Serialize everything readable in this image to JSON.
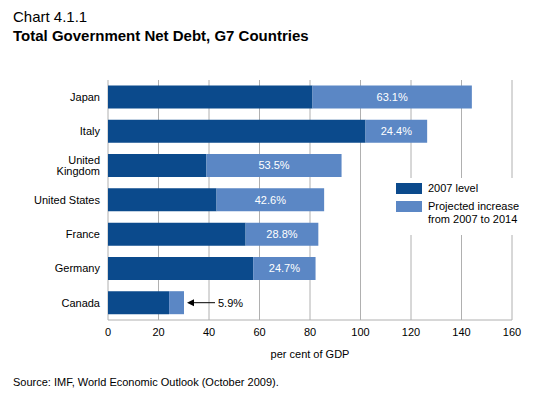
{
  "chart_data": {
    "type": "bar",
    "orientation": "horizontal",
    "stacked": true,
    "title": "Chart 4.1.1",
    "subtitle": "Total Government Net Debt, G7 Countries",
    "xlabel": "per cent of GDP",
    "source": "Source: IMF, World Economic Outlook (October 2009).",
    "categories": [
      "Japan",
      "Italy",
      "United Kingdom",
      "United States",
      "France",
      "Germany",
      "Canada"
    ],
    "series": [
      {
        "name": "2007 level",
        "color": "#0b4a8c",
        "values": [
          81,
          102,
          39,
          43,
          54.5,
          57.5,
          24.2
        ]
      },
      {
        "name": "Projected increase from 2007 to 2014",
        "color": "#5b87c5",
        "values": [
          63.1,
          24.4,
          53.5,
          42.6,
          28.8,
          24.7,
          5.9
        ],
        "data_labels": true,
        "value_labels": [
          "63.1%",
          "24.4%",
          "53.5%",
          "42.6%",
          "28.8%",
          "24.7%",
          "5.9%"
        ]
      }
    ],
    "xlim": [
      0,
      160
    ],
    "xticks": [
      0,
      20,
      40,
      60,
      80,
      100,
      120,
      140,
      160
    ],
    "grid": true,
    "legend": "right"
  }
}
